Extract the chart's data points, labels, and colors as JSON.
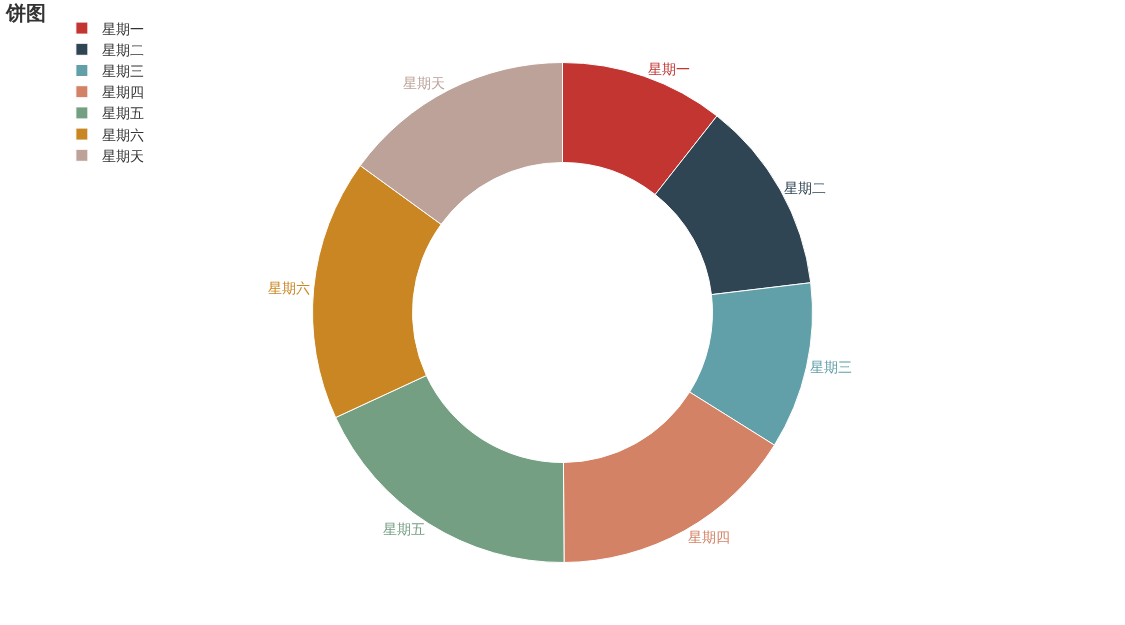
{
  "chart_data": {
    "type": "donut",
    "title": "饼图",
    "categories": [
      "星期一",
      "星期二",
      "星期三",
      "星期四",
      "星期五",
      "星期六",
      "星期天"
    ],
    "values": [
      10.6,
      12.5,
      10.8,
      16.0,
      18.2,
      16.9,
      15.0
    ],
    "colors": [
      "#c23531",
      "#2f4554",
      "#61a0a8",
      "#d48265",
      "#749f83",
      "#ca8622",
      "#bda29a"
    ],
    "legend": "top left"
  }
}
